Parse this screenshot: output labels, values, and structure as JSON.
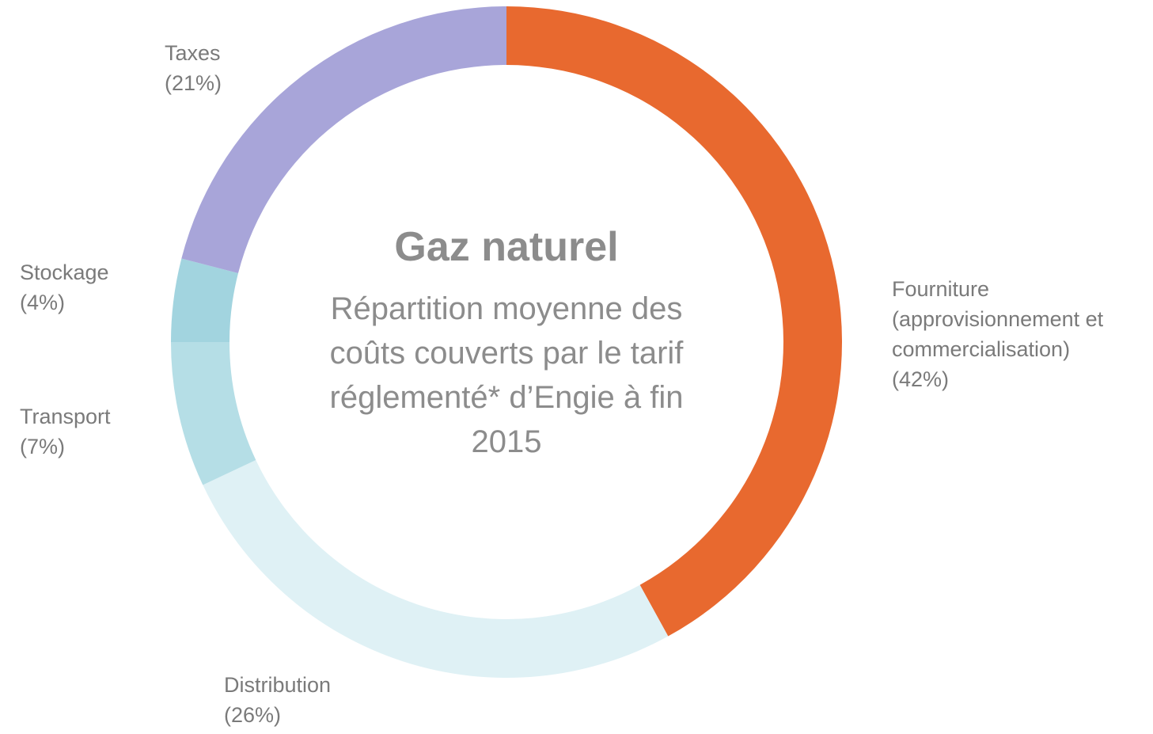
{
  "chart_data": {
    "type": "donut",
    "title": "Gaz naturel",
    "subtitle": "Répartition moyenne des coûts couverts par le tarif réglementé* d’Engie à fin 2015",
    "categories": [
      "Fourniture (approvisionnement et commercialisation)",
      "Distribution",
      "Transport",
      "Stockage",
      "Taxes"
    ],
    "values": [
      42,
      26,
      7,
      4,
      21
    ],
    "value_labels": [
      "(42%)",
      "(26%)",
      "(7%)",
      "(4%)",
      "(21%)"
    ],
    "colors": [
      "#e8692f",
      "#dff1f5",
      "#b5dee6",
      "#a2d4df",
      "#a8a5d9"
    ]
  }
}
